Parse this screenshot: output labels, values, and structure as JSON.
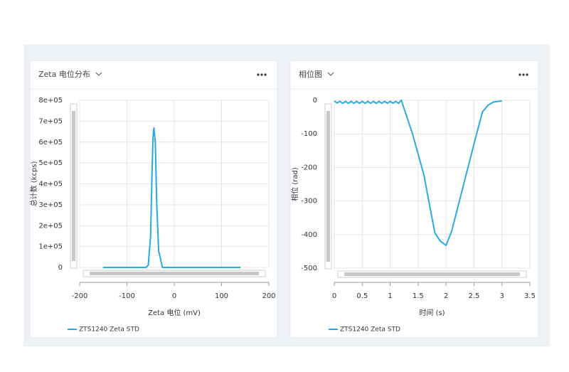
{
  "chart_data": [
    {
      "type": "line",
      "title": "Zeta 电位分布",
      "x_label": "Zeta 电位 (mV)",
      "y_label": "总计数 (kcps)",
      "x": [
        -150,
        -60,
        -55,
        -50,
        -47,
        -45,
        -43,
        -40,
        -37,
        -33,
        -28,
        -25,
        140
      ],
      "series": [
        {
          "name": "ZTS1240 Zeta STD",
          "color": "#29abe2",
          "values": [
            0,
            0,
            10000,
            150000,
            450000,
            620000,
            670000,
            600000,
            300000,
            80000,
            30000,
            0,
            0
          ]
        }
      ],
      "xlim": [
        -200,
        200
      ],
      "xticks": [
        -200,
        -100,
        0,
        100,
        200
      ],
      "ylim": [
        0,
        800000
      ],
      "yticks": [
        0,
        {
          "value": 100000,
          "label": "1e+05"
        },
        {
          "value": 200000,
          "label": "2e+05"
        },
        {
          "value": 300000,
          "label": "3e+05"
        },
        {
          "value": 400000,
          "label": "4e+05"
        },
        {
          "value": 500000,
          "label": "5e+05"
        },
        {
          "value": 600000,
          "label": "6e+05"
        },
        {
          "value": 700000,
          "label": "7e+05"
        },
        {
          "value": 800000,
          "label": "8e+05"
        }
      ],
      "grid": true
    },
    {
      "type": "line",
      "title": "相位图",
      "x_label": "时间 (s)",
      "y_label": "相位 (rad)",
      "x": [
        0,
        0.05,
        0.1,
        0.15,
        0.2,
        0.25,
        0.3,
        0.35,
        0.4,
        0.45,
        0.5,
        0.55,
        0.6,
        0.65,
        0.7,
        0.75,
        0.8,
        0.85,
        0.9,
        0.95,
        1,
        1.05,
        1.1,
        1.15,
        1.2,
        1.4,
        1.6,
        1.8,
        1.9,
        2,
        2.1,
        2.3,
        2.5,
        2.65,
        2.75,
        2.85,
        3
      ],
      "series": [
        {
          "name": "ZTS1240 Zeta STD",
          "color": "#29abe2",
          "values": [
            -2,
            -8,
            -3,
            -9,
            -3,
            -9,
            -3,
            -9,
            -3,
            -9,
            -3,
            -9,
            -3,
            -9,
            -3,
            -9,
            -3,
            -9,
            -3,
            -9,
            -3,
            -9,
            -3,
            -9,
            0,
            -100,
            -220,
            -395,
            -420,
            -432,
            -390,
            -260,
            -130,
            -35,
            -15,
            -5,
            -2
          ]
        }
      ],
      "xlim": [
        0,
        3.5
      ],
      "xticks": [
        0,
        0.5,
        1,
        1.5,
        2,
        2.5,
        3,
        3.5
      ],
      "ylim": [
        -500,
        0
      ],
      "yticks": [
        0,
        -100,
        -200,
        -300,
        -400,
        -500
      ],
      "grid": true
    }
  ]
}
